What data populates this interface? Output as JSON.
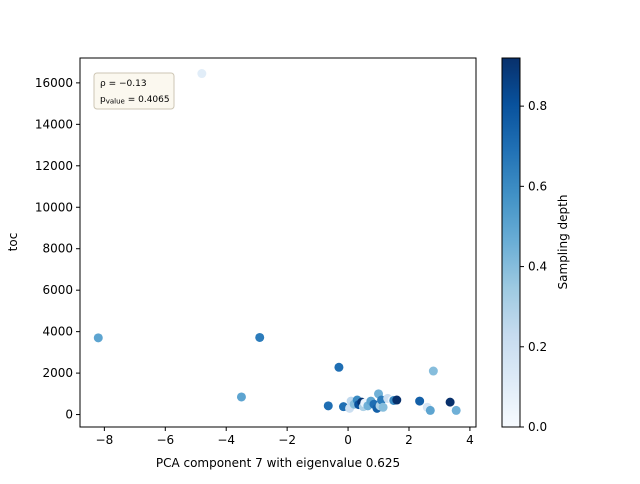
{
  "chart_data": {
    "type": "scatter",
    "xlabel": "PCA component 7 with eigenvalue 0.625",
    "ylabel": "toc",
    "xlim": [
      -8.8,
      4.2
    ],
    "ylim": [
      -600,
      17200
    ],
    "xticks": [
      -8,
      -6,
      -4,
      -2,
      0,
      2,
      4
    ],
    "yticks": [
      0,
      2000,
      4000,
      6000,
      8000,
      10000,
      12000,
      14000,
      16000
    ],
    "xtick_labels": [
      "−8",
      "−6",
      "−4",
      "−2",
      "0",
      "2",
      "4"
    ],
    "ytick_labels": [
      "0",
      "2000",
      "4000",
      "6000",
      "8000",
      "10000",
      "12000",
      "14000",
      "16000"
    ],
    "annotation": {
      "rho": "ρ = −0.13",
      "p_main": "p",
      "p_sub": "value",
      "p_rest": " = 0.4065"
    },
    "colorbar": {
      "label": "Sampling depth",
      "colormap": "Blues",
      "range": [
        0.0,
        0.92
      ],
      "ticks": [
        0.0,
        0.2,
        0.4,
        0.6,
        0.8
      ],
      "tick_labels": [
        "0.0",
        "0.2",
        "0.4",
        "0.6",
        "0.8"
      ]
    },
    "points": [
      {
        "x": -4.8,
        "y": 16450,
        "c": 0.1
      },
      {
        "x": -8.2,
        "y": 3700,
        "c": 0.5
      },
      {
        "x": -2.9,
        "y": 3720,
        "c": 0.65
      },
      {
        "x": -3.5,
        "y": 850,
        "c": 0.5
      },
      {
        "x": -0.3,
        "y": 2280,
        "c": 0.7
      },
      {
        "x": -0.65,
        "y": 420,
        "c": 0.7
      },
      {
        "x": -0.15,
        "y": 380,
        "c": 0.7
      },
      {
        "x": 0.05,
        "y": 300,
        "c": 0.2
      },
      {
        "x": 0.1,
        "y": 650,
        "c": 0.25
      },
      {
        "x": 0.2,
        "y": 500,
        "c": 0.4
      },
      {
        "x": 0.3,
        "y": 700,
        "c": 0.6
      },
      {
        "x": 0.35,
        "y": 480,
        "c": 0.8
      },
      {
        "x": 0.45,
        "y": 600,
        "c": 0.9
      },
      {
        "x": 0.5,
        "y": 380,
        "c": 0.3
      },
      {
        "x": 0.55,
        "y": 560,
        "c": 0.05
      },
      {
        "x": 0.65,
        "y": 420,
        "c": 0.45
      },
      {
        "x": 0.75,
        "y": 650,
        "c": 0.5
      },
      {
        "x": 0.85,
        "y": 500,
        "c": 0.7
      },
      {
        "x": 0.95,
        "y": 300,
        "c": 0.75
      },
      {
        "x": 1.0,
        "y": 1000,
        "c": 0.45
      },
      {
        "x": 1.05,
        "y": 420,
        "c": 0.3
      },
      {
        "x": 1.1,
        "y": 700,
        "c": 0.65
      },
      {
        "x": 1.15,
        "y": 350,
        "c": 0.4
      },
      {
        "x": 1.3,
        "y": 780,
        "c": 0.2
      },
      {
        "x": 1.45,
        "y": 700,
        "c": 0.05
      },
      {
        "x": 1.5,
        "y": 680,
        "c": 0.6
      },
      {
        "x": 1.6,
        "y": 700,
        "c": 0.92
      },
      {
        "x": 2.35,
        "y": 650,
        "c": 0.75
      },
      {
        "x": 2.6,
        "y": 350,
        "c": 0.15
      },
      {
        "x": 2.7,
        "y": 200,
        "c": 0.5
      },
      {
        "x": 2.8,
        "y": 2100,
        "c": 0.4
      },
      {
        "x": 3.35,
        "y": 600,
        "c": 0.92
      },
      {
        "x": 3.55,
        "y": 200,
        "c": 0.45
      }
    ]
  }
}
